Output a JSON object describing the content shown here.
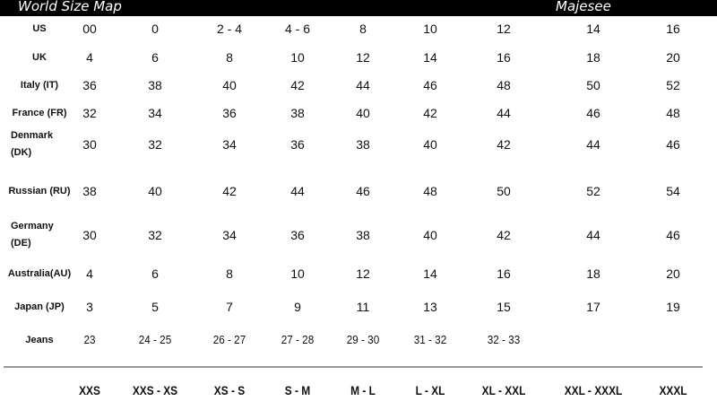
{
  "header": {
    "title": "World Size Map",
    "brand": "Majesee"
  },
  "rows": [
    {
      "label": "US",
      "values": [
        "00",
        "0",
        "2 - 4",
        "4 - 6",
        "8",
        "10",
        "12",
        "14",
        "16"
      ]
    },
    {
      "label": "UK",
      "values": [
        "4",
        "6",
        "8",
        "10",
        "12",
        "14",
        "16",
        "18",
        "20"
      ]
    },
    {
      "label": "Italy (IT)",
      "values": [
        "36",
        "38",
        "40",
        "42",
        "44",
        "46",
        "48",
        "50",
        "52"
      ]
    },
    {
      "label": "France (FR)",
      "values": [
        "32",
        "34",
        "36",
        "38",
        "40",
        "42",
        "44",
        "46",
        "48"
      ]
    },
    {
      "label": "Denmark (DK)",
      "values": [
        "30",
        "32",
        "34",
        "36",
        "38",
        "40",
        "42",
        "44",
        "46"
      ]
    },
    {
      "label": "Russian (RU)",
      "values": [
        "38",
        "40",
        "42",
        "44",
        "46",
        "48",
        "50",
        "52",
        "54"
      ]
    },
    {
      "label": "Germany (DE)",
      "values": [
        "30",
        "32",
        "34",
        "36",
        "38",
        "40",
        "42",
        "44",
        "46"
      ]
    },
    {
      "label": "Australia(AU)",
      "values": [
        "4",
        "6",
        "8",
        "10",
        "12",
        "14",
        "16",
        "18",
        "20"
      ]
    },
    {
      "label": "Japan (JP)",
      "values": [
        "3",
        "5",
        "7",
        "9",
        "11",
        "13",
        "15",
        "17",
        "19"
      ]
    },
    {
      "label": "Jeans",
      "values": [
        "23",
        "24 - 25",
        "26 - 27",
        "27 - 28",
        "29 - 30",
        "31 - 32",
        "32 - 33"
      ]
    }
  ],
  "sizes": [
    "XXS",
    "XXS - XS",
    "XS - S",
    "S - M",
    "M - L",
    "L - XL",
    "XL - XXL",
    "XXL - XXXL",
    "XXXL"
  ]
}
